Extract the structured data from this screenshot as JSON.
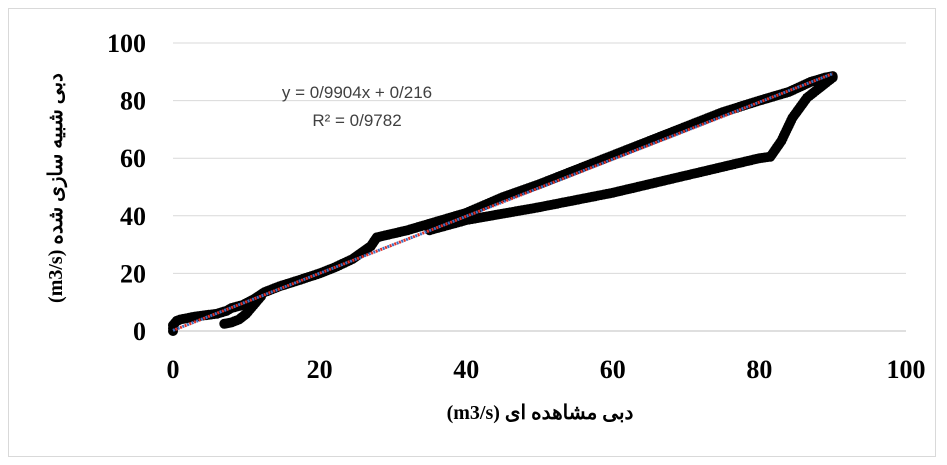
{
  "chart_data": {
    "type": "scatter",
    "title": "",
    "xlabel": "دبی مشاهده ای  (m3/s)",
    "ylabel": "دبی شبیه سازی شده  (m3/s)",
    "xlim": [
      0,
      100
    ],
    "ylim": [
      0,
      100
    ],
    "x_ticks": [
      "0",
      "20",
      "40",
      "60",
      "80",
      "100"
    ],
    "y_ticks": [
      "0",
      "20",
      "40",
      "60",
      "80",
      "100"
    ],
    "grid": "horizontal",
    "legend": "none",
    "marker_color": "#000000",
    "trendline": {
      "slope": 0.9904,
      "intercept": 0.216,
      "equation": "y = 0/9904x + 0/216",
      "r_squared": "R² = 0/9782",
      "colors": [
        "#e0302a",
        "#3f6fc0"
      ]
    },
    "series": [
      {
        "segments": [
          [
            [
              0,
              0
            ],
            [
              0,
              2
            ],
            [
              0.5,
              3.5
            ],
            [
              1,
              4
            ],
            [
              3,
              5
            ],
            [
              6,
              6
            ],
            [
              7.3,
              7
            ],
            [
              8,
              8
            ],
            [
              9.5,
              9
            ],
            [
              11,
              11
            ],
            [
              12.5,
              13.5
            ],
            [
              14.5,
              15.5
            ],
            [
              17,
              17.5
            ],
            [
              20,
              20
            ],
            [
              22,
              22
            ],
            [
              24.5,
              25
            ],
            [
              27,
              29.5
            ],
            [
              27.8,
              32.5
            ],
            [
              32,
              35
            ],
            [
              36,
              38
            ],
            [
              40,
              41
            ],
            [
              45,
              46.5
            ],
            [
              50,
              51
            ],
            [
              55,
              56
            ],
            [
              60,
              61
            ],
            [
              65,
              66
            ],
            [
              70,
              71
            ],
            [
              75,
              76
            ],
            [
              80,
              80
            ],
            [
              84,
              83
            ],
            [
              87,
              86.5
            ],
            [
              89,
              88
            ],
            [
              90,
              88.5
            ]
          ],
          [
            [
              7,
              2.5
            ],
            [
              8,
              3
            ],
            [
              9,
              4
            ],
            [
              10,
              6
            ],
            [
              11,
              9
            ],
            [
              12,
              12
            ]
          ],
          [
            [
              90,
              88
            ],
            [
              88.5,
              85
            ],
            [
              86.5,
              81
            ],
            [
              84.5,
              74
            ],
            [
              83,
              66
            ],
            [
              81.5,
              60.5
            ],
            [
              80,
              60
            ],
            [
              70,
              54
            ],
            [
              60,
              48
            ],
            [
              50,
              43
            ],
            [
              40,
              38.5
            ],
            [
              35,
              35
            ]
          ]
        ]
      }
    ]
  }
}
